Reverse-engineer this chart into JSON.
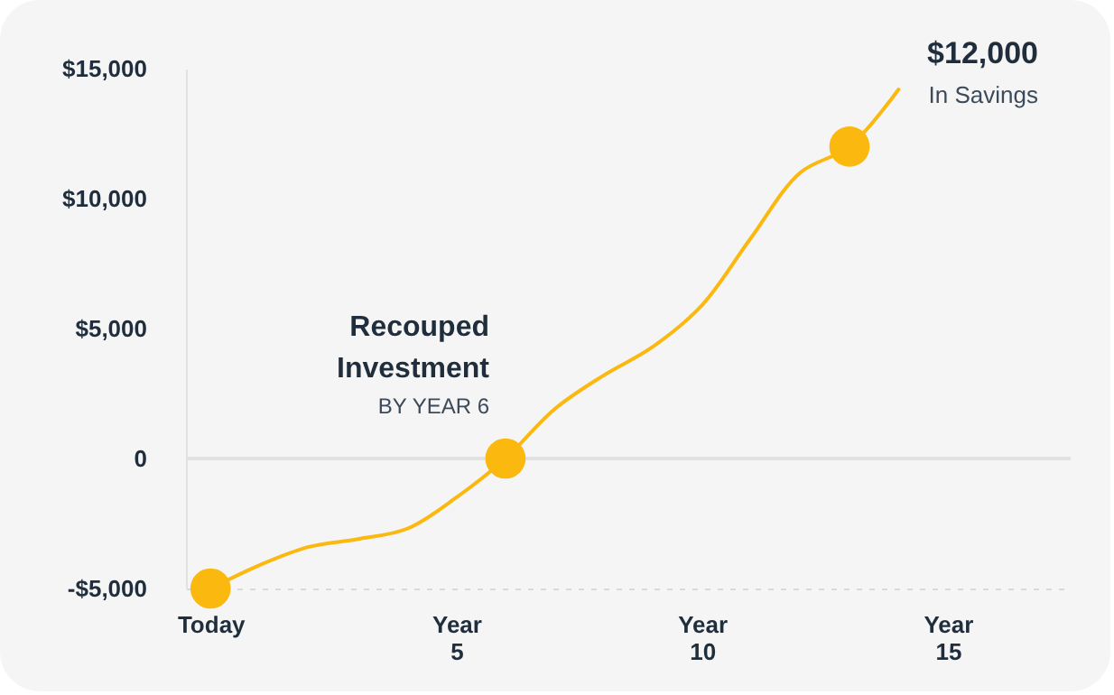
{
  "chart_data": {
    "type": "line",
    "annotations": [
      "Recouped Investment",
      "BY YEAR 6",
      "$12,000",
      "In Savings"
    ],
    "categories": [
      "Today",
      null,
      null,
      null,
      null,
      "Year 5",
      null,
      null,
      null,
      null,
      "Year 10",
      null,
      null,
      null,
      null,
      "Year 15",
      null,
      null
    ],
    "series": [
      {
        "color": "#fbb80f",
        "values": [
          -5000,
          -4100,
          -3400,
          -3100,
          -2700,
          -1500,
          0,
          1900,
          3200,
          4300,
          5900,
          8500,
          11000,
          12000,
          14200,
          null,
          null,
          null
        ]
      },
      {
        "type": "scatter",
        "marker": "circle",
        "color": "#fbb80f",
        "values": [
          -5000,
          null,
          null,
          null,
          null,
          null,
          0,
          null,
          null,
          null,
          null,
          null,
          null,
          12000,
          null,
          null,
          null,
          null
        ]
      }
    ],
    "ylim": [
      -5000,
      15000
    ],
    "yticks": [
      {
        "value": -5000,
        "label": "-$5,000"
      },
      0,
      {
        "value": 5000,
        "label": "$5,000"
      },
      {
        "value": 10000,
        "label": "$10,000"
      },
      {
        "value": 15000,
        "label": "$15,000"
      }
    ],
    "ref_lines": [
      {
        "axis": "y",
        "value": 0,
        "color": "#e2e2e2"
      }
    ],
    "line_style": "solid",
    "grid": false
  }
}
